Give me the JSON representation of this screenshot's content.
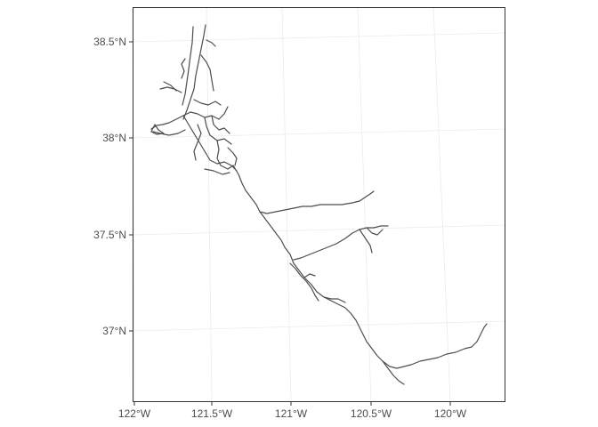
{
  "map": {
    "type": "line-features",
    "x_axis": {
      "ticks": [
        {
          "value": -122.0,
          "label": "122°W"
        },
        {
          "value": -121.5,
          "label": "121.5°W"
        },
        {
          "value": -121.0,
          "label": "121°W"
        },
        {
          "value": -120.5,
          "label": "120.5°W"
        },
        {
          "value": -120.0,
          "label": "120°W"
        }
      ]
    },
    "y_axis": {
      "ticks": [
        {
          "value": 38.5,
          "label": "38.5°N"
        },
        {
          "value": 38.0,
          "label": "38°N"
        },
        {
          "value": 37.5,
          "label": "37.5°N"
        },
        {
          "value": 37.0,
          "label": "37°N"
        }
      ]
    },
    "grid": true,
    "line_color": "#4d4d4d",
    "grid_color": "#ebebeb",
    "background": "#ffffff"
  }
}
